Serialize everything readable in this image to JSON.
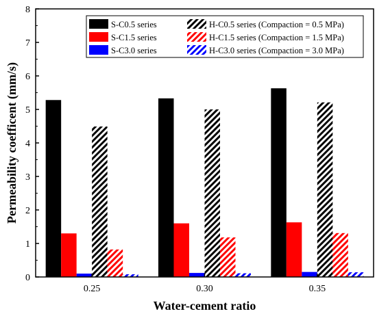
{
  "chart_data": {
    "type": "bar",
    "title": "",
    "xlabel": "Water-cement ratio",
    "ylabel": "Permeability coefficent (mm/s)",
    "categories": [
      "0.25",
      "0.30",
      "0.35"
    ],
    "ylim": [
      0,
      8
    ],
    "yticks": [
      "0",
      "1",
      "2",
      "3",
      "4",
      "5",
      "6",
      "7",
      "8"
    ],
    "grid": false,
    "legend_position": "top-right",
    "series": [
      {
        "name": "S-C0.5 series",
        "values": [
          5.28,
          5.33,
          5.63
        ],
        "color": "#000000",
        "pattern": "solid"
      },
      {
        "name": "S-C1.5 series",
        "values": [
          1.3,
          1.6,
          1.63
        ],
        "color": "#ff0000",
        "pattern": "solid"
      },
      {
        "name": "S-C3.0 series",
        "values": [
          0.1,
          0.12,
          0.15
        ],
        "color": "#0000ff",
        "pattern": "solid"
      },
      {
        "name": "H-C0.5 series (Compaction = 0.5 MPa)",
        "values": [
          4.49,
          5.0,
          5.21
        ],
        "color": "#000000",
        "pattern": "hatch"
      },
      {
        "name": "H-C1.5 series (Compaction = 1.5 MPa)",
        "values": [
          0.82,
          1.18,
          1.31
        ],
        "color": "#ff0000",
        "pattern": "hatch"
      },
      {
        "name": "H-C3.0 series (Compaction = 3.0 MPa)",
        "values": [
          0.08,
          0.11,
          0.14
        ],
        "color": "#0000ff",
        "pattern": "hatch"
      }
    ],
    "legend_order": [
      0,
      3,
      1,
      4,
      2,
      5
    ]
  }
}
